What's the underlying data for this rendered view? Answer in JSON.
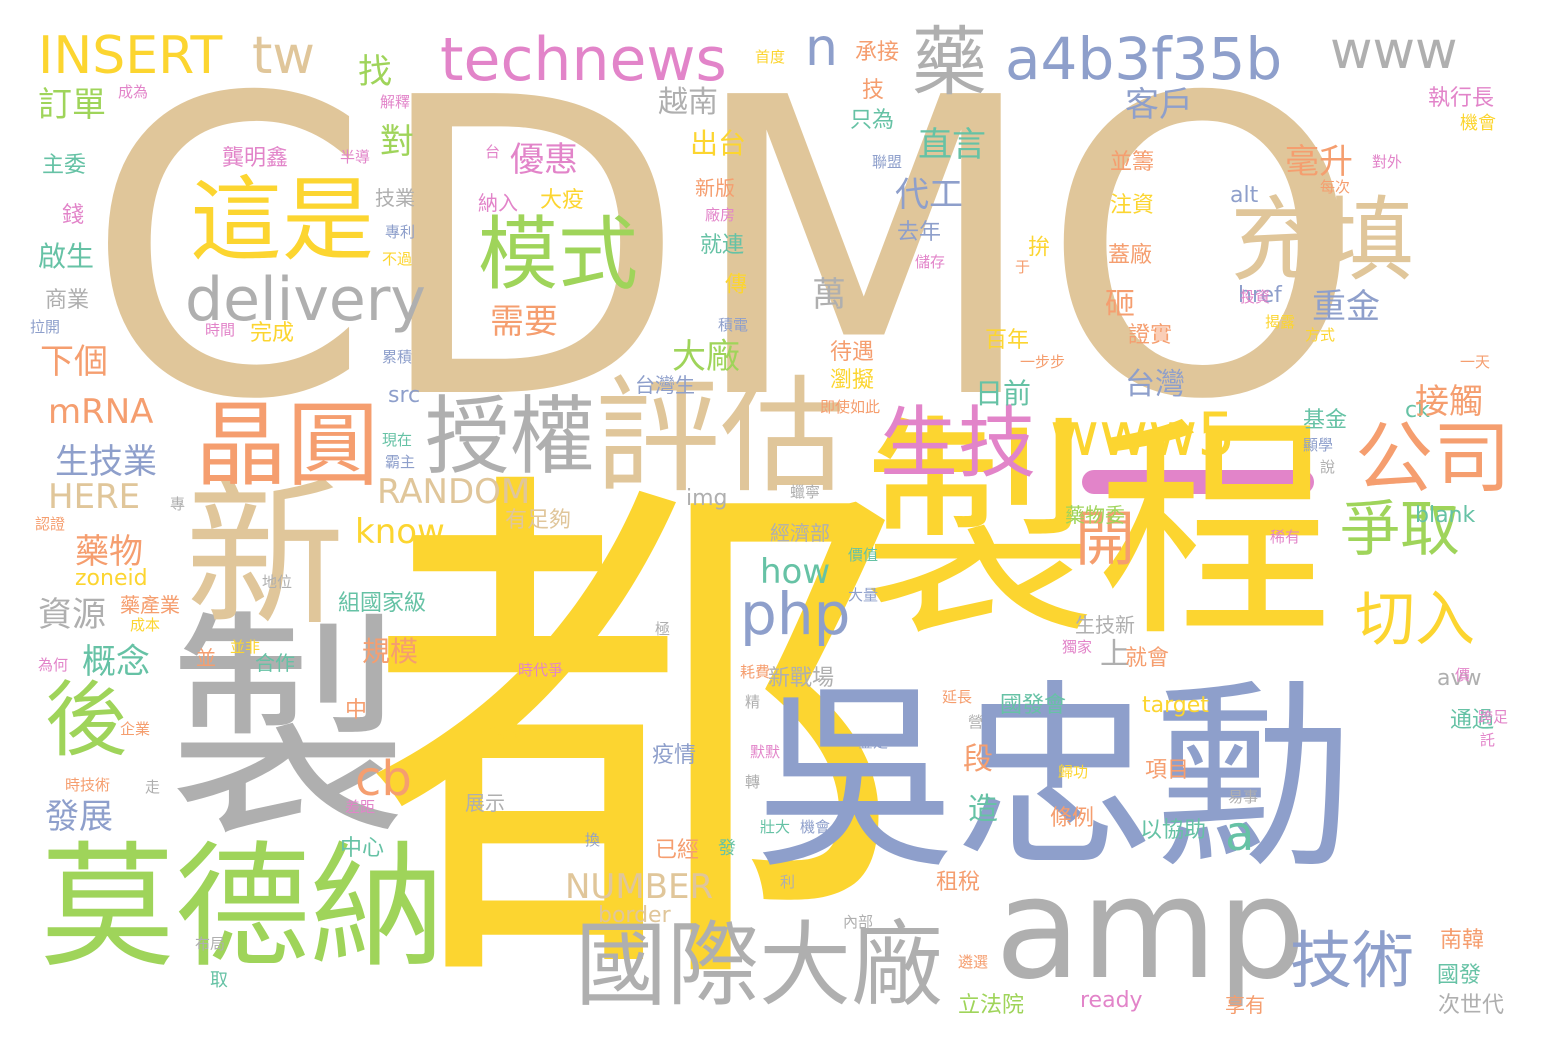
{
  "palette": {
    "tan": "#E0C69A",
    "yellow": "#FCD530",
    "blue": "#8E9FCB",
    "green": "#9FD45A",
    "gray": "#AFAFAF",
    "orange": "#F59E6F",
    "pink": "#E284C9",
    "teal": "#66C2A5"
  },
  "words": [
    {
      "text": "CDMO"
    },
    {
      "text": "都"
    },
    {
      "text": "製程"
    },
    {
      "text": "吳忠勳"
    },
    {
      "text": "莫德納"
    },
    {
      "text": "製"
    },
    {
      "text": "新"
    },
    {
      "text": "評估"
    },
    {
      "text": "amp"
    },
    {
      "text": "國際大廠"
    },
    {
      "text": "晶圓"
    },
    {
      "text": "授權"
    },
    {
      "text": "這是"
    },
    {
      "text": "模式"
    },
    {
      "text": "充填"
    },
    {
      "text": "生技"
    },
    {
      "text": "公司"
    },
    {
      "text": "www5"
    },
    {
      "text": "delivery"
    },
    {
      "text": "technews"
    },
    {
      "text": "INSERT"
    },
    {
      "text": "tw"
    },
    {
      "text": "a4b3f35b"
    },
    {
      "text": "www"
    },
    {
      "text": "藥"
    },
    {
      "text": "n"
    },
    {
      "text": "後"
    },
    {
      "text": "開"
    },
    {
      "text": "爭取"
    },
    {
      "text": "切入"
    },
    {
      "text": "技術"
    },
    {
      "text": "php"
    },
    {
      "text": "cb"
    },
    {
      "text": "a"
    },
    {
      "text": "RANDOM"
    },
    {
      "text": "NUMBER"
    },
    {
      "text": "know"
    },
    {
      "text": "how"
    },
    {
      "text": "mRNA"
    },
    {
      "text": "HERE"
    },
    {
      "text": "zoneid"
    },
    {
      "text": "border"
    },
    {
      "text": "ready"
    },
    {
      "text": "href"
    },
    {
      "text": "alt"
    },
    {
      "text": "src"
    },
    {
      "text": "img"
    },
    {
      "text": "blank"
    },
    {
      "text": "avw"
    },
    {
      "text": "target"
    },
    {
      "text": "ck"
    },
    {
      "text": "訂單"
    },
    {
      "text": "主委"
    },
    {
      "text": "錢"
    },
    {
      "text": "啟生"
    },
    {
      "text": "商業"
    },
    {
      "text": "拉開"
    },
    {
      "text": "下個"
    },
    {
      "text": "生技業"
    },
    {
      "text": "藥物"
    },
    {
      "text": "資源"
    },
    {
      "text": "概念"
    },
    {
      "text": "發展"
    },
    {
      "text": "找"
    },
    {
      "text": "對"
    },
    {
      "text": "龔明鑫"
    },
    {
      "text": "優惠"
    },
    {
      "text": "大疫"
    },
    {
      "text": "納入"
    },
    {
      "text": "需要"
    },
    {
      "text": "完成"
    },
    {
      "text": "越南"
    },
    {
      "text": "出台"
    },
    {
      "text": "新版"
    },
    {
      "text": "廠房"
    },
    {
      "text": "就連"
    },
    {
      "text": "傳"
    },
    {
      "text": "積電"
    },
    {
      "text": "大廠"
    },
    {
      "text": "萬"
    },
    {
      "text": "直言"
    },
    {
      "text": "代工"
    },
    {
      "text": "去年"
    },
    {
      "text": "首度"
    },
    {
      "text": "承接"
    },
    {
      "text": "技"
    },
    {
      "text": "只為"
    },
    {
      "text": "客戶"
    },
    {
      "text": "毫升"
    },
    {
      "text": "並籌"
    },
    {
      "text": "注資"
    },
    {
      "text": "蓋廠"
    },
    {
      "text": "砸"
    },
    {
      "text": "重金"
    },
    {
      "text": "執行長"
    },
    {
      "text": "機會"
    },
    {
      "text": "對外"
    },
    {
      "text": "每次"
    },
    {
      "text": "投資"
    },
    {
      "text": "揭露"
    },
    {
      "text": "方式"
    },
    {
      "text": "拚"
    },
    {
      "text": "百年"
    },
    {
      "text": "一步步"
    },
    {
      "text": "證實"
    },
    {
      "text": "待遇"
    },
    {
      "text": "瀏擬"
    },
    {
      "text": "日前"
    },
    {
      "text": "台灣"
    },
    {
      "text": "接觸"
    },
    {
      "text": "基金"
    },
    {
      "text": "一天"
    },
    {
      "text": "台灣生"
    },
    {
      "text": "即使如此"
    },
    {
      "text": "有足夠"
    },
    {
      "text": "經濟部"
    },
    {
      "text": "價值"
    },
    {
      "text": "大量"
    },
    {
      "text": "生技新"
    },
    {
      "text": "藥物委"
    },
    {
      "text": "上"
    },
    {
      "text": "就會"
    },
    {
      "text": "組國家級"
    },
    {
      "text": "規模"
    },
    {
      "text": "新戰場"
    },
    {
      "text": "時代爭"
    },
    {
      "text": "耗費"
    },
    {
      "text": "國發會"
    },
    {
      "text": "延長"
    },
    {
      "text": "意外"
    },
    {
      "text": "疫情"
    },
    {
      "text": "展示"
    },
    {
      "text": "段"
    },
    {
      "text": "造"
    },
    {
      "text": "中"
    },
    {
      "text": "中心"
    },
    {
      "text": "已經"
    },
    {
      "text": "發"
    },
    {
      "text": "換"
    },
    {
      "text": "壯大"
    },
    {
      "text": "機會"
    },
    {
      "text": "以協助"
    },
    {
      "text": "條例"
    },
    {
      "text": "項目"
    },
    {
      "text": "通過"
    },
    {
      "text": "租稅"
    },
    {
      "text": "南韓"
    },
    {
      "text": "國發"
    },
    {
      "text": "次世代"
    },
    {
      "text": "享有"
    },
    {
      "text": "立法院"
    },
    {
      "text": "遴選"
    },
    {
      "text": "內部"
    },
    {
      "text": "布局"
    },
    {
      "text": "取"
    },
    {
      "text": "走"
    },
    {
      "text": "企業"
    },
    {
      "text": "差距"
    },
    {
      "text": "成本"
    },
    {
      "text": "為何"
    },
    {
      "text": "地位"
    },
    {
      "text": "藥產業"
    },
    {
      "text": "並非"
    },
    {
      "text": "合作"
    },
    {
      "text": "並"
    },
    {
      "text": "認證"
    },
    {
      "text": "現在"
    },
    {
      "text": "霸主"
    },
    {
      "text": "累積"
    },
    {
      "text": "時間"
    },
    {
      "text": "技業"
    },
    {
      "text": "專利"
    },
    {
      "text": "不過"
    },
    {
      "text": "儲存"
    },
    {
      "text": "聯盟"
    },
    {
      "text": "半導"
    },
    {
      "text": "解釋"
    },
    {
      "text": "成為"
    },
    {
      "text": "稀有"
    },
    {
      "text": "獨家"
    },
    {
      "text": "跨足"
    },
    {
      "text": "鑒定"
    },
    {
      "text": "歸功"
    },
    {
      "text": "易事"
    },
    {
      "text": "顯學"
    },
    {
      "text": "說"
    },
    {
      "text": "精"
    },
    {
      "text": "默默"
    },
    {
      "text": "轉"
    },
    {
      "text": "利"
    },
    {
      "text": "專"
    },
    {
      "text": "極"
    },
    {
      "text": "于"
    },
    {
      "text": "台"
    },
    {
      "text": "營"
    },
    {
      "text": "託"
    },
    {
      "text": "蠟寧"
    },
    {
      "text": "時技術"
    },
    {
      "text": "價"
    }
  ]
}
